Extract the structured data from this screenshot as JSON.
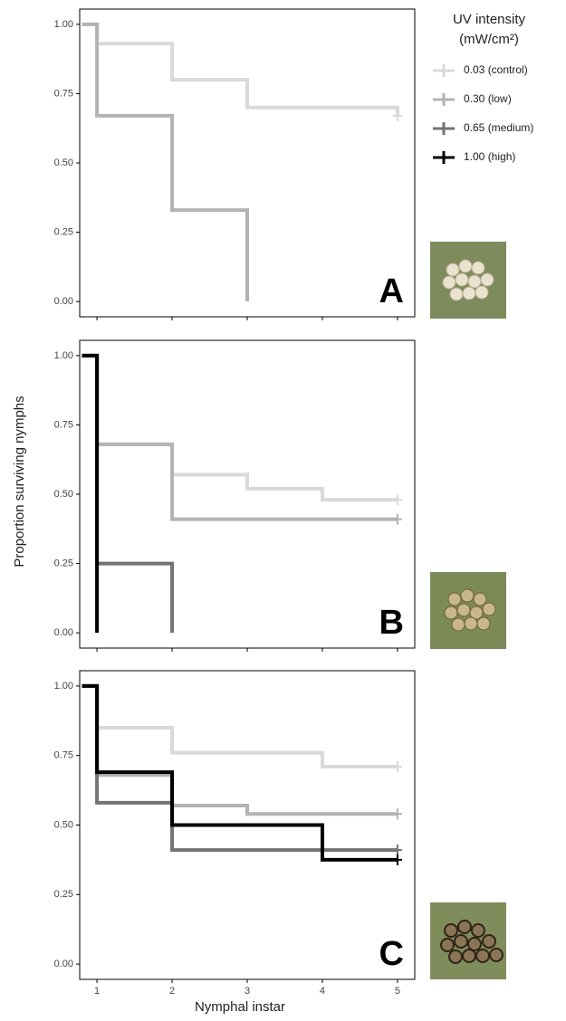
{
  "chart_data": [
    {
      "type": "step",
      "label": "A",
      "legend": {
        "title": "UV intensity",
        "unit": "(mW/cm²)",
        "items": [
          {
            "name": "0.03 (control)",
            "color": "#d9d9d9"
          },
          {
            "name": "0.30 (low)",
            "color": "#b3b3b3"
          },
          {
            "name": "0.65 (medium)",
            "color": "#737373"
          },
          {
            "name": "1.00 (high)",
            "color": "#000000"
          }
        ]
      },
      "xlim": [
        0.77,
        5.23
      ],
      "ylim": [
        -0.055,
        1.055
      ],
      "xticks": [
        1,
        2,
        3,
        4,
        5
      ],
      "yticks": [
        {
          "value": 0,
          "label": "0.00"
        },
        {
          "value": 0.25,
          "label": "0.25"
        },
        {
          "value": 0.5,
          "label": "0.50"
        },
        {
          "value": 0.75,
          "label": "0.75"
        },
        {
          "value": 1,
          "label": "1.00"
        }
      ],
      "series": [
        {
          "color": "#d9d9d9",
          "x": [
            0.8,
            1,
            2,
            3,
            5
          ],
          "values": [
            1.0,
            0.93,
            0.8,
            0.7,
            0.67
          ]
        },
        {
          "color": "#b3b3b3",
          "x": [
            0.8,
            1,
            2,
            3
          ],
          "values": [
            1.0,
            0.67,
            0.33,
            0.0
          ]
        }
      ]
    },
    {
      "type": "step",
      "label": "B",
      "ylabel": "Proportion surviving nymphs",
      "xlim": [
        0.77,
        5.23
      ],
      "ylim": [
        -0.055,
        1.055
      ],
      "xticks": [
        1,
        2,
        3,
        4,
        5
      ],
      "yticks": [
        {
          "value": 0,
          "label": "0.00"
        },
        {
          "value": 0.25,
          "label": "0.25"
        },
        {
          "value": 0.5,
          "label": "0.50"
        },
        {
          "value": 0.75,
          "label": "0.75"
        },
        {
          "value": 1,
          "label": "1.00"
        }
      ],
      "series": [
        {
          "color": "#d9d9d9",
          "x": [
            0.8,
            1,
            2,
            3,
            4,
            5
          ],
          "values": [
            1.0,
            0.68,
            0.57,
            0.52,
            0.48,
            0.48
          ]
        },
        {
          "color": "#b3b3b3",
          "x": [
            0.8,
            1,
            2,
            5
          ],
          "values": [
            1.0,
            0.68,
            0.41,
            0.41
          ]
        },
        {
          "color": "#737373",
          "x": [
            0.8,
            1,
            2
          ],
          "values": [
            1.0,
            0.25,
            0.0
          ]
        },
        {
          "color": "#000000",
          "x": [
            0.8,
            1
          ],
          "values": [
            1.0,
            0.0
          ]
        }
      ]
    },
    {
      "type": "step",
      "label": "C",
      "xlabel": "Nymphal instar",
      "xlim": [
        0.77,
        5.23
      ],
      "ylim": [
        -0.055,
        1.055
      ],
      "xticks": [
        1,
        2,
        3,
        4,
        5
      ],
      "yticks": [
        {
          "value": 0,
          "label": "0.00"
        },
        {
          "value": 0.25,
          "label": "0.25"
        },
        {
          "value": 0.5,
          "label": "0.50"
        },
        {
          "value": 0.75,
          "label": "0.75"
        },
        {
          "value": 1,
          "label": "1.00"
        }
      ],
      "series": [
        {
          "color": "#d9d9d9",
          "x": [
            0.8,
            1,
            2,
            4,
            5
          ],
          "values": [
            1.0,
            0.85,
            0.76,
            0.71,
            0.71
          ]
        },
        {
          "color": "#b3b3b3",
          "x": [
            0.8,
            1,
            2,
            3,
            5
          ],
          "values": [
            1.0,
            0.68,
            0.57,
            0.54,
            0.54
          ]
        },
        {
          "color": "#737373",
          "x": [
            0.8,
            1,
            2,
            5
          ],
          "values": [
            1.0,
            0.58,
            0.41,
            0.41
          ]
        },
        {
          "color": "#000000",
          "x": [
            0.8,
            1,
            2,
            4,
            5
          ],
          "values": [
            1.0,
            0.69,
            0.5,
            0.375,
            0.375
          ]
        }
      ]
    }
  ]
}
